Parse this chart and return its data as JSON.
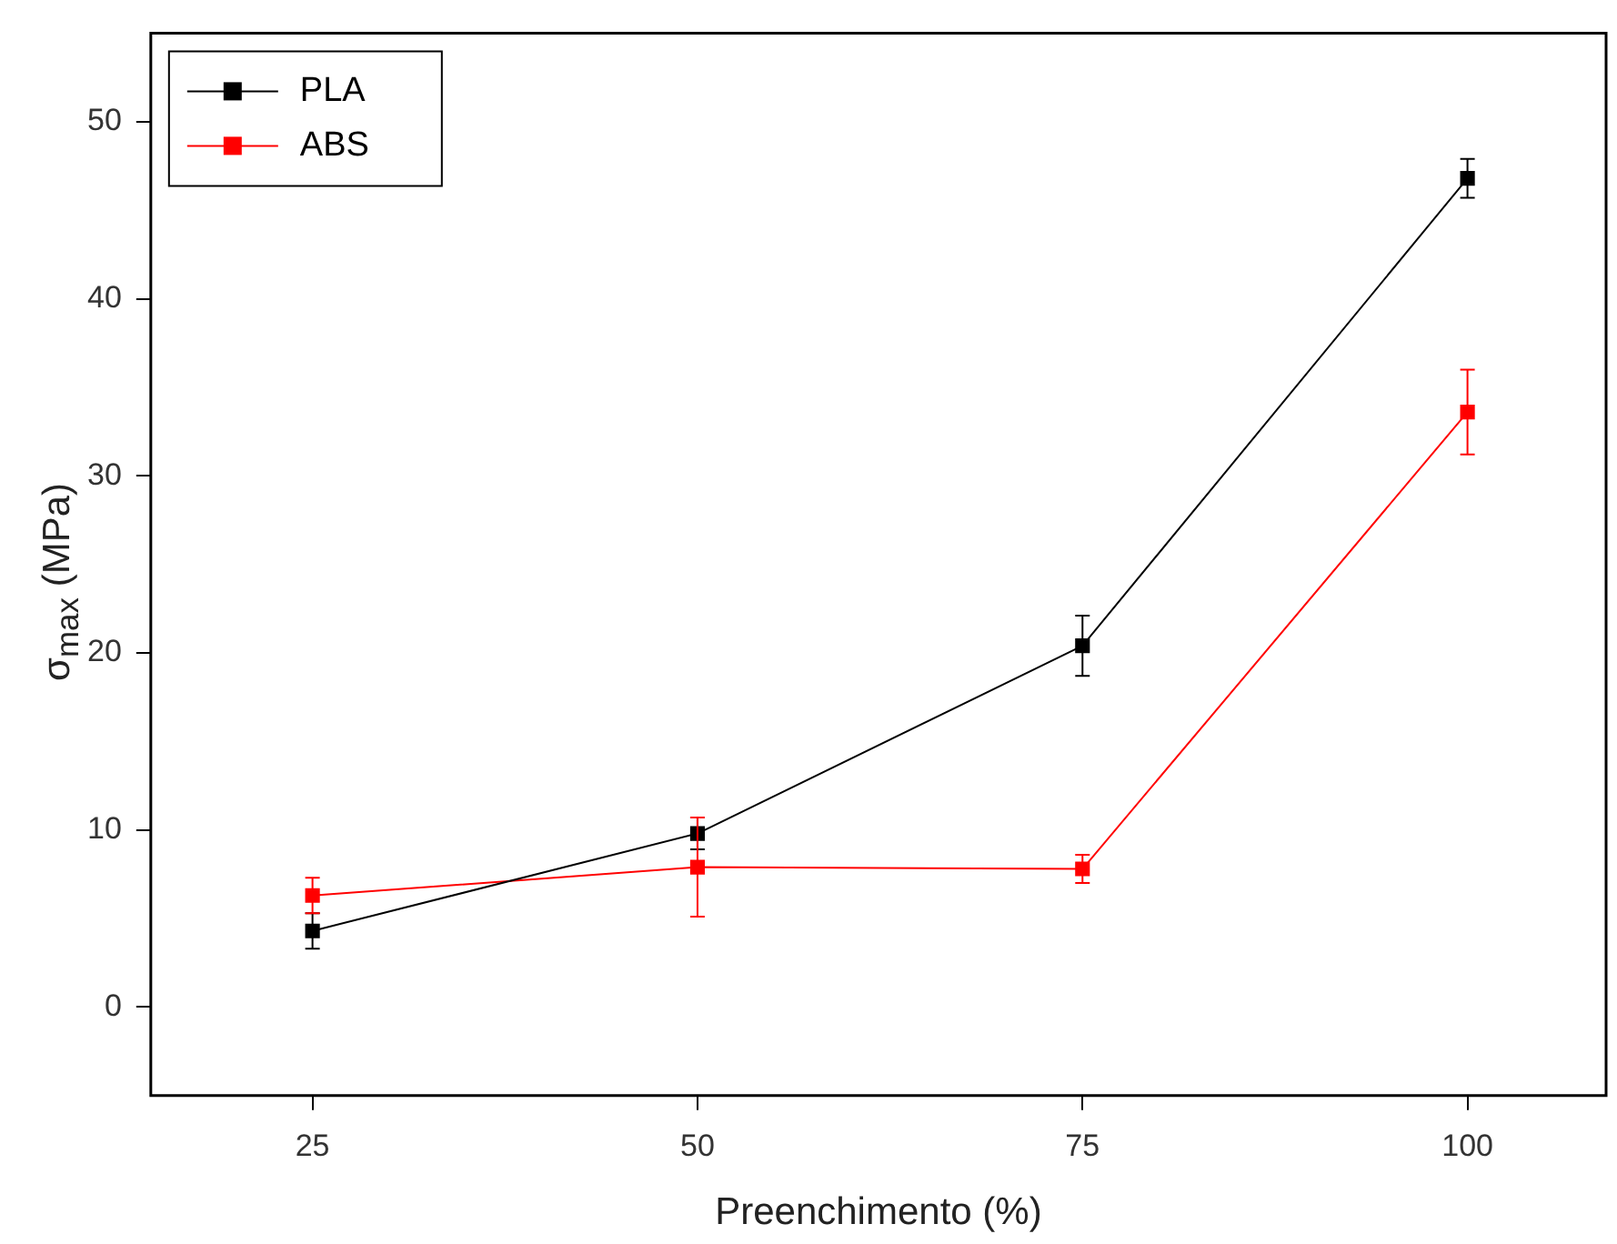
{
  "chart_data": {
    "type": "line",
    "xlabel": "Preenchimento (%)",
    "ylabel": "σ$_{max}$ (MPa)",
    "x": [
      25,
      50,
      75,
      100
    ],
    "series": [
      {
        "name": "PLA",
        "color": "#000000",
        "values": [
          4.3,
          9.8,
          20.4,
          46.8
        ],
        "errors": [
          1.0,
          0.9,
          1.7,
          1.1
        ]
      },
      {
        "name": "ABS",
        "color": "#ff0000",
        "values": [
          6.3,
          7.9,
          7.8,
          33.6
        ],
        "errors": [
          1.0,
          2.8,
          0.8,
          2.4
        ]
      }
    ],
    "xlim": [
      14.5,
      109
    ],
    "xticks": [
      25,
      50,
      75,
      100
    ],
    "ylim": [
      -5,
      55
    ],
    "yticks": [
      0,
      10,
      20,
      30,
      40,
      50
    ],
    "grid": false,
    "legend": "top left",
    "marker": "square",
    "line_style": "solid"
  }
}
